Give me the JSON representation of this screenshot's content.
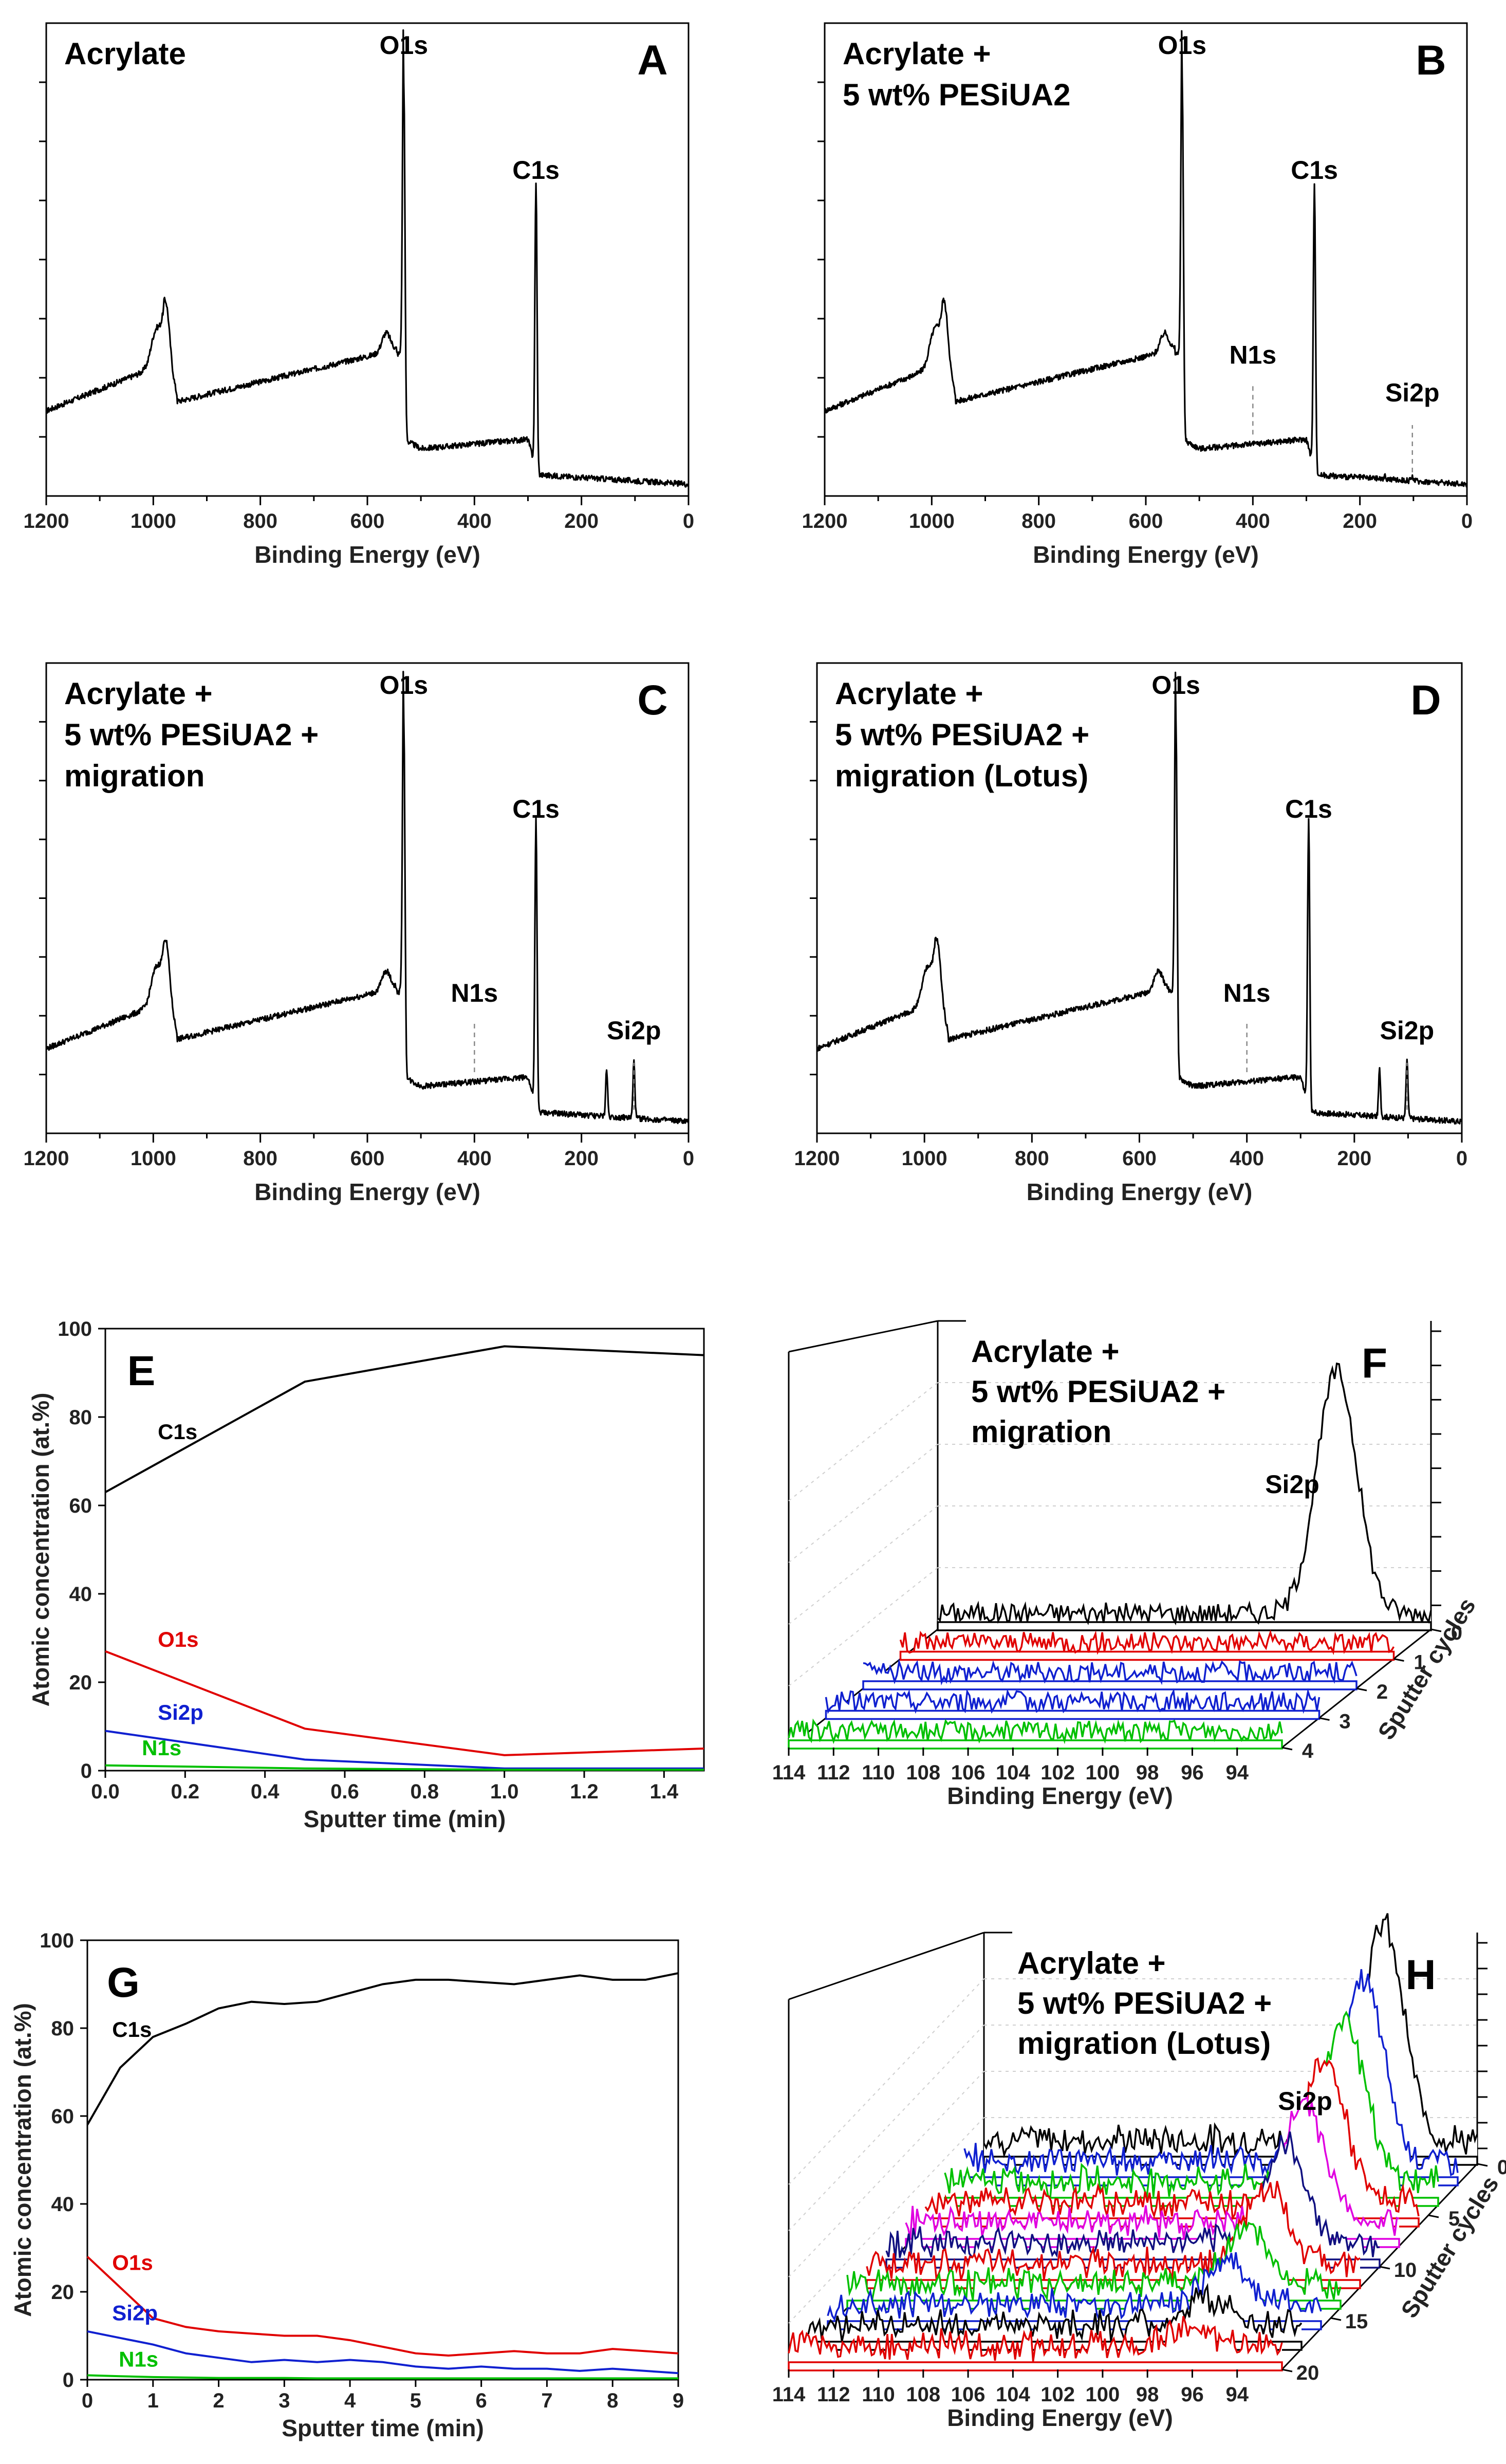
{
  "colors": {
    "C1s": "#000000",
    "O1s": "#e00000",
    "Si2p": "#1020d0",
    "N1s": "#00c000",
    "magenta": "#e000e0",
    "darkblue": "#101080"
  },
  "survey": {
    "xlabel": "Binding Energy (eV)",
    "xticks": [
      "1200",
      "1000",
      "800",
      "600",
      "400",
      "200",
      "0"
    ],
    "panels": [
      {
        "letter": "A",
        "title": [
          "Acrylate"
        ],
        "peaks": {
          "o1s": "O1s",
          "c1s": "C1s"
        }
      },
      {
        "letter": "B",
        "title": [
          "Acrylate +",
          "5 wt% PESiUA2"
        ],
        "peaks": {
          "o1s": "O1s",
          "c1s": "C1s",
          "n1s": "N1s",
          "si2p": "Si2p"
        }
      },
      {
        "letter": "C",
        "title": [
          "Acrylate +",
          "5 wt% PESiUA2 +",
          "migration"
        ],
        "peaks": {
          "o1s": "O1s",
          "c1s": "C1s",
          "n1s": "N1s",
          "si2p": "Si2p"
        }
      },
      {
        "letter": "D",
        "title": [
          "Acrylate +",
          "5 wt% PESiUA2 +",
          "migration (Lotus)"
        ],
        "peaks": {
          "o1s": "O1s",
          "c1s": "C1s",
          "n1s": "N1s",
          "si2p": "Si2p"
        }
      }
    ]
  },
  "depth": {
    "ylabel": "Atomic concentration (at.%)",
    "xlabel": "Sputter time (min)",
    "E": {
      "letter": "E",
      "yticks": [
        "0",
        "20",
        "40",
        "60",
        "80",
        "100"
      ],
      "xticks": [
        "0.0",
        "0.2",
        "0.4",
        "0.6",
        "0.8",
        "1.0",
        "1.2",
        "1.4"
      ],
      "labels": {
        "C1s": "C1s",
        "O1s": "O1s",
        "Si2p": "Si2p",
        "N1s": "N1s"
      }
    },
    "G": {
      "letter": "G",
      "yticks": [
        "0",
        "20",
        "40",
        "60",
        "80",
        "100"
      ],
      "xticks": [
        "0",
        "1",
        "2",
        "3",
        "4",
        "5",
        "6",
        "7",
        "8",
        "9"
      ],
      "labels": {
        "C1s": "C1s",
        "O1s": "O1s",
        "Si2p": "Si2p",
        "N1s": "N1s"
      }
    }
  },
  "waterfall": {
    "xlabel": "Binding Energy (eV)",
    "zlabel": "Sputter cycles",
    "xticks": [
      "114",
      "112",
      "110",
      "108",
      "106",
      "104",
      "102",
      "100",
      "98",
      "96",
      "94"
    ],
    "F": {
      "letter": "F",
      "title": [
        "Acrylate +",
        "5 wt% PESiUA2 +",
        "migration"
      ],
      "peak": "Si2p",
      "zticks": [
        "0",
        "1",
        "2",
        "3",
        "4"
      ]
    },
    "H": {
      "letter": "H",
      "title": [
        "Acrylate +",
        "5 wt% PESiUA2 +",
        "migration (Lotus)"
      ],
      "peak": "Si2p",
      "zticks": [
        "0",
        "5",
        "10",
        "15",
        "20"
      ]
    }
  },
  "chart_data": [
    {
      "type": "line",
      "panel": "A",
      "xlabel": "Binding Energy (eV)",
      "xlim": [
        1200,
        0
      ],
      "peaks": [
        {
          "name": "O1s",
          "x": 532
        },
        {
          "name": "C1s",
          "x": 285
        }
      ]
    },
    {
      "type": "line",
      "panel": "B",
      "xlabel": "Binding Energy (eV)",
      "xlim": [
        1200,
        0
      ],
      "peaks": [
        {
          "name": "O1s",
          "x": 532
        },
        {
          "name": "C1s",
          "x": 285
        },
        {
          "name": "N1s",
          "x": 400
        },
        {
          "name": "Si2p",
          "x": 102
        }
      ]
    },
    {
      "type": "line",
      "panel": "C",
      "xlabel": "Binding Energy (eV)",
      "xlim": [
        1200,
        0
      ],
      "peaks": [
        {
          "name": "O1s",
          "x": 532
        },
        {
          "name": "C1s",
          "x": 285
        },
        {
          "name": "N1s",
          "x": 400
        },
        {
          "name": "Si2p",
          "x": 102
        }
      ]
    },
    {
      "type": "line",
      "panel": "D",
      "xlabel": "Binding Energy (eV)",
      "xlim": [
        1200,
        0
      ],
      "peaks": [
        {
          "name": "O1s",
          "x": 532
        },
        {
          "name": "C1s",
          "x": 285
        },
        {
          "name": "N1s",
          "x": 400
        },
        {
          "name": "Si2p",
          "x": 102
        }
      ]
    },
    {
      "type": "line",
      "panel": "E",
      "xlabel": "Sputter time (min)",
      "ylabel": "Atomic concentration (at.%)",
      "xlim": [
        0,
        1.5
      ],
      "ylim": [
        0,
        100
      ],
      "x": [
        0,
        0.5,
        1.0,
        1.5
      ],
      "series": [
        {
          "name": "C1s",
          "values": [
            63,
            88,
            96,
            94
          ]
        },
        {
          "name": "O1s",
          "values": [
            27,
            9.5,
            3.5,
            5
          ]
        },
        {
          "name": "Si2p",
          "values": [
            9,
            2.5,
            0.5,
            0.5
          ]
        },
        {
          "name": "N1s",
          "values": [
            1.2,
            0.5,
            0.2,
            0.2
          ]
        }
      ]
    },
    {
      "type": "area",
      "panel": "F",
      "xlabel": "Binding Energy (eV)",
      "xlim": [
        114,
        92
      ],
      "zlabel": "Sputter cycles",
      "cycles": [
        0,
        1,
        2,
        3,
        4
      ],
      "peak_center": 96,
      "peak_heights": [
        1.0,
        0.0,
        0.0,
        0.0,
        0.0
      ]
    },
    {
      "type": "line",
      "panel": "G",
      "xlabel": "Sputter time (min)",
      "ylabel": "Atomic concentration (at.%)",
      "xlim": [
        0,
        9
      ],
      "ylim": [
        0,
        100
      ],
      "x": [
        0,
        0.5,
        1,
        1.5,
        2,
        2.5,
        3,
        3.5,
        4,
        4.5,
        5,
        5.5,
        6,
        6.5,
        7,
        7.5,
        8,
        8.5,
        9
      ],
      "series": [
        {
          "name": "C1s",
          "values": [
            58,
            71,
            78,
            81,
            84.5,
            86,
            85.5,
            86,
            88,
            90,
            91,
            91,
            90.5,
            90,
            91,
            92,
            91,
            91,
            92.5
          ]
        },
        {
          "name": "O1s",
          "values": [
            28,
            21,
            14,
            12,
            11,
            10.5,
            10,
            10,
            9,
            7.5,
            6,
            5.5,
            6,
            6.5,
            6,
            6,
            7,
            6.5,
            6
          ]
        },
        {
          "name": "Si2p",
          "values": [
            11,
            9.5,
            8,
            6,
            5,
            4,
            4.5,
            4,
            4.5,
            4,
            3,
            2.5,
            3,
            2.5,
            2.5,
            2,
            2.5,
            2,
            1.5
          ]
        },
        {
          "name": "N1s",
          "values": [
            1,
            0.8,
            0.6,
            0.5,
            0.4,
            0.4,
            0.4,
            0.3,
            0.3,
            0.3,
            0.3,
            0.3,
            0.3,
            0.3,
            0.3,
            0.3,
            0.3,
            0.3,
            0.3
          ]
        }
      ]
    },
    {
      "type": "area",
      "panel": "H",
      "xlabel": "Binding Energy (eV)",
      "xlim": [
        114,
        92
      ],
      "zlabel": "Sputter cycles",
      "cycles": [
        0,
        2,
        4,
        6,
        8,
        10,
        12,
        14,
        16,
        18,
        20
      ],
      "peak_center": 96,
      "peak_heights": [
        1.0,
        0.85,
        0.8,
        0.7,
        0.6,
        0.5,
        0.4,
        0.3,
        0.25,
        0.15,
        0.1
      ]
    }
  ]
}
